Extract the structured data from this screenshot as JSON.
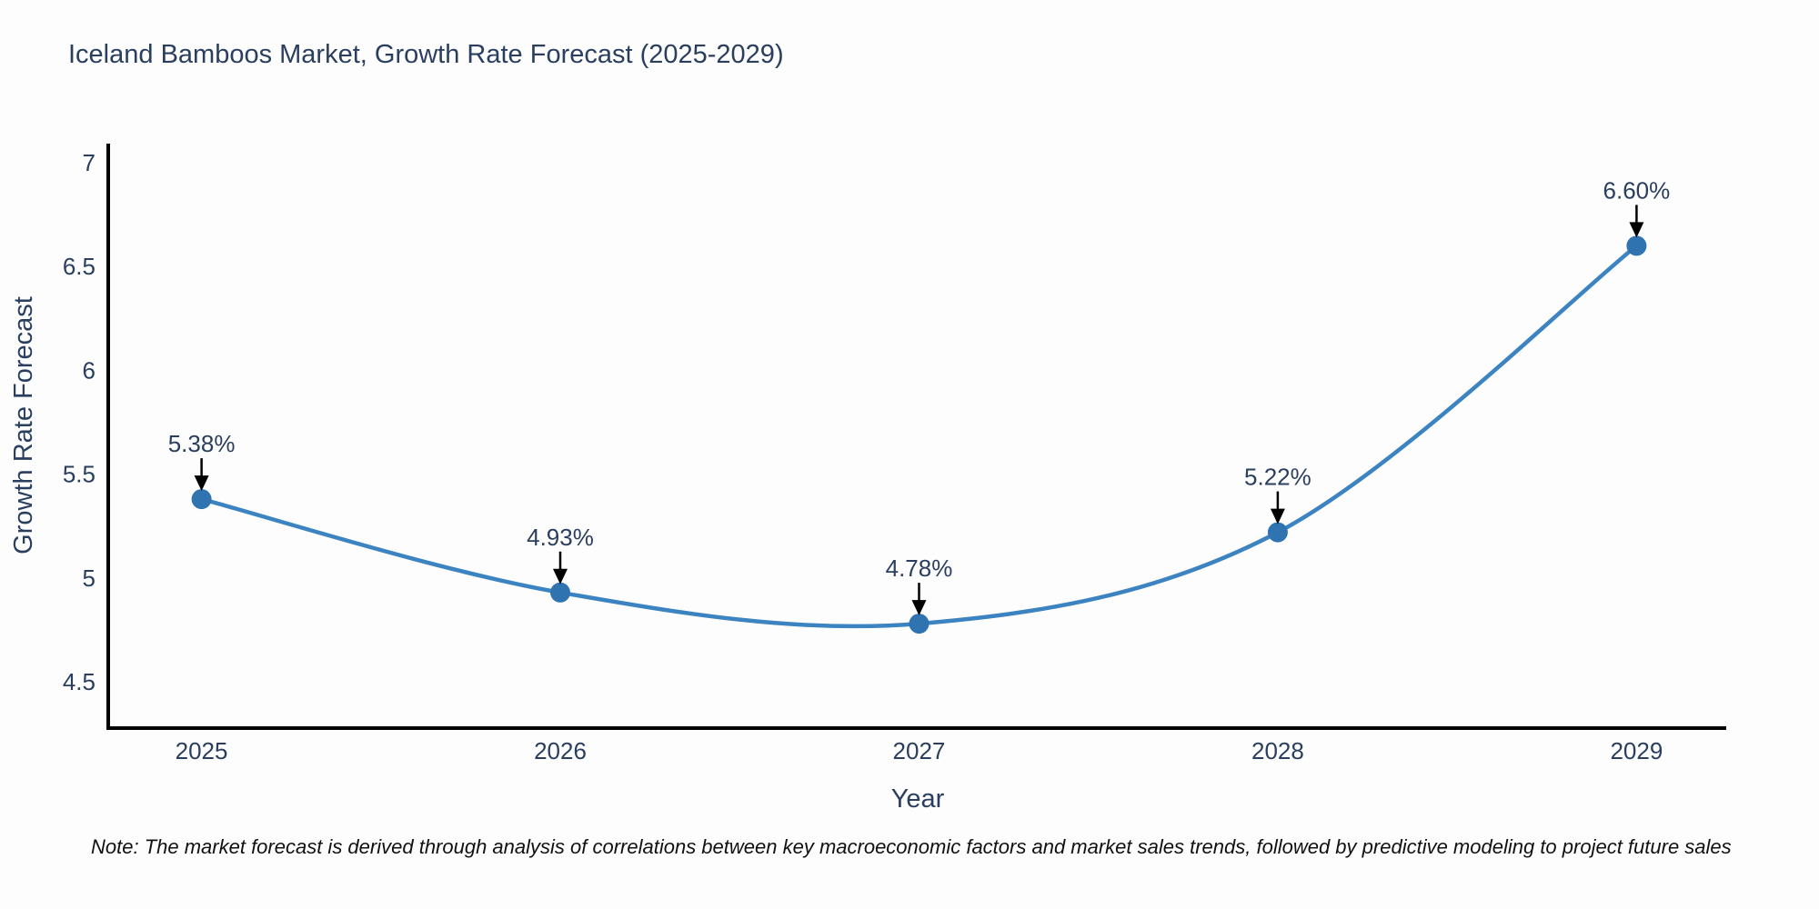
{
  "header": {
    "title": "Iceland Bamboos Market, Growth Rate Forecast (2025-2029)"
  },
  "footnote": {
    "text": "Note: The market forecast is derived through analysis of correlations between key macroeconomic factors and market sales trends, followed by predictive modeling to project future sales"
  },
  "chart_data": {
    "type": "line",
    "title": "Iceland Bamboos Market, Growth Rate Forecast (2025-2029)",
    "xlabel": "Year",
    "ylabel": "Growth Rate Forecast",
    "x": [
      2025,
      2026,
      2027,
      2028,
      2029
    ],
    "series": [
      {
        "name": "Growth Rate Forecast",
        "values": [
          5.38,
          4.93,
          4.78,
          5.22,
          6.6
        ]
      }
    ],
    "point_labels": [
      "5.38%",
      "4.93%",
      "4.78%",
      "5.22%",
      "6.60%"
    ],
    "line_shape": "spline",
    "grid": false,
    "legend_position": "none",
    "xticks": [
      2025,
      2026,
      2027,
      2028,
      2029
    ],
    "yticks": [
      4.5,
      5,
      5.5,
      6,
      6.5,
      7
    ],
    "xlim": [
      2024.74,
      2029.25
    ],
    "ylim": [
      4.277,
      7.092
    ],
    "colors": {
      "line": "#3c83c1",
      "marker": "#2f74b0",
      "axis": "#000000",
      "text": "#2a3f5f",
      "arrow": "#000000",
      "note": "#111111"
    }
  }
}
